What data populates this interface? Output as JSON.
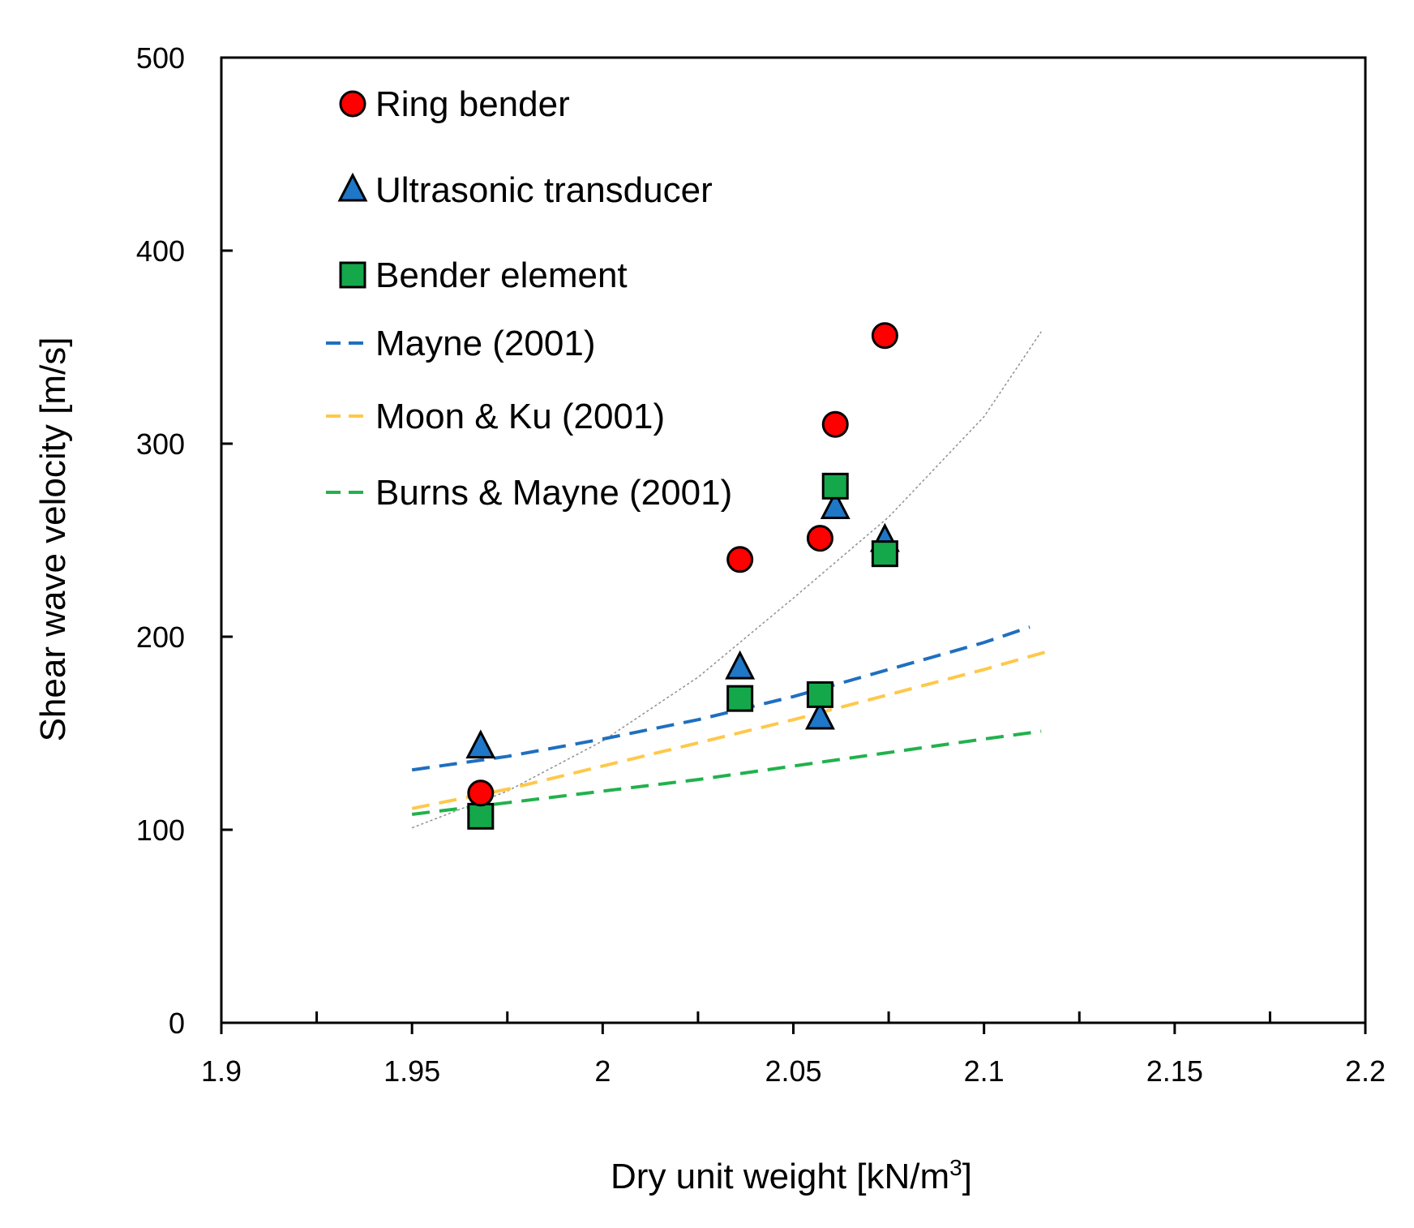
{
  "chart_data": {
    "type": "scatter",
    "xlabel": "Dry unit weight [kN/m",
    "xlabel_sup": "3",
    "xlabel_end": "]",
    "ylabel": "Shear wave velocity [m/s]",
    "xlim": [
      1.9,
      2.2
    ],
    "ylim": [
      0,
      500
    ],
    "xticks": [
      1.9,
      1.95,
      2.0,
      2.05,
      2.1,
      2.15,
      2.2
    ],
    "xtick_labels": [
      "1.9",
      "1.95",
      "2",
      "2.05",
      "2.1",
      "2.15",
      "2.2"
    ],
    "xminor": [
      1.925,
      1.975,
      2.025,
      2.075,
      2.125,
      2.175
    ],
    "yticks": [
      0,
      100,
      200,
      300,
      400,
      500
    ],
    "ytick_labels": [
      "0",
      "100",
      "200",
      "300",
      "400",
      "500"
    ],
    "grid": false,
    "legend_position": "top-left",
    "scatter_series": [
      {
        "name": "Ring bender",
        "marker": "circle",
        "color": "#ff0000",
        "points": [
          [
            1.968,
            119
          ],
          [
            2.036,
            240
          ],
          [
            2.057,
            251
          ],
          [
            2.061,
            310
          ],
          [
            2.074,
            356
          ]
        ]
      },
      {
        "name": "Ultrasonic transducer",
        "marker": "triangle",
        "color": "#1f77c8",
        "points": [
          [
            1.968,
            143
          ],
          [
            2.036,
            184
          ],
          [
            2.057,
            158
          ],
          [
            2.061,
            267
          ],
          [
            2.074,
            250
          ]
        ]
      },
      {
        "name": "Bender element",
        "marker": "square",
        "color": "#14a84b",
        "points": [
          [
            1.968,
            107
          ],
          [
            2.036,
            168
          ],
          [
            2.057,
            170
          ],
          [
            2.061,
            278
          ],
          [
            2.074,
            243
          ]
        ]
      }
    ],
    "line_series": [
      {
        "name": "Mayne (2001)",
        "color": "#1f6fbf",
        "points": [
          [
            1.95,
            131
          ],
          [
            1.975,
            138
          ],
          [
            2.0,
            147
          ],
          [
            2.025,
            157
          ],
          [
            2.05,
            169
          ],
          [
            2.075,
            183
          ],
          [
            2.1,
            197
          ],
          [
            2.112,
            205
          ]
        ]
      },
      {
        "name": "Moon & Ku (2001)",
        "color": "#ffc84a",
        "points": [
          [
            1.95,
            111
          ],
          [
            1.975,
            121
          ],
          [
            2.0,
            133
          ],
          [
            2.025,
            145
          ],
          [
            2.05,
            157
          ],
          [
            2.075,
            170
          ],
          [
            2.1,
            183
          ],
          [
            2.116,
            192
          ]
        ]
      },
      {
        "name": "Burns & Mayne (2001)",
        "color": "#22b14c",
        "points": [
          [
            1.95,
            108
          ],
          [
            1.975,
            114
          ],
          [
            2.0,
            120
          ],
          [
            2.025,
            126
          ],
          [
            2.05,
            133
          ],
          [
            2.075,
            140
          ],
          [
            2.1,
            147
          ],
          [
            2.115,
            151
          ]
        ]
      }
    ],
    "trendline": {
      "name": "",
      "color": "#909090",
      "points": [
        [
          1.95,
          101
        ],
        [
          1.975,
          120
        ],
        [
          2.0,
          146
        ],
        [
          2.025,
          179
        ],
        [
          2.05,
          220
        ],
        [
          2.075,
          262
        ],
        [
          2.1,
          314
        ],
        [
          2.115,
          358
        ]
      ]
    }
  }
}
